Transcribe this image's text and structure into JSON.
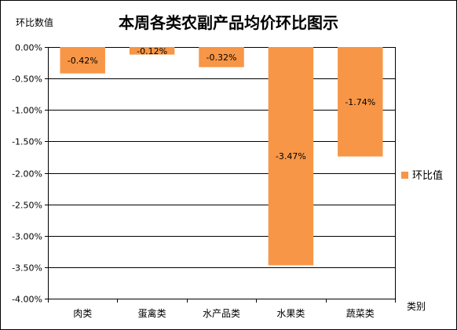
{
  "chart_data": {
    "type": "bar",
    "title": "本周各类农副产品均价环比图示",
    "ylabel": "环比数值",
    "xlabel": "类别",
    "categories": [
      "肉类",
      "蛋禽类",
      "水产品类",
      "水果类",
      "蔬菜类"
    ],
    "series": [
      {
        "name": "环比值",
        "values": [
          -0.42,
          -0.12,
          -0.32,
          -3.47,
          -1.74
        ],
        "color": "#F79646"
      }
    ],
    "data_labels": [
      "-0.42%",
      "-0.12%",
      "-0.32%",
      "-3.47%",
      "-1.74%"
    ],
    "ylim": [
      -4.0,
      0.0
    ],
    "yticks": [
      0,
      -0.5,
      -1.0,
      -1.5,
      -2.0,
      -2.5,
      -3.0,
      -3.5,
      -4.0
    ],
    "ytick_labels": [
      "0.00%",
      "-0.50%",
      "-1.00%",
      "-1.50%",
      "-2.00%",
      "-2.50%",
      "-3.00%",
      "-3.50%",
      "-4.00%"
    ],
    "grid": true,
    "legend_position": "right"
  }
}
